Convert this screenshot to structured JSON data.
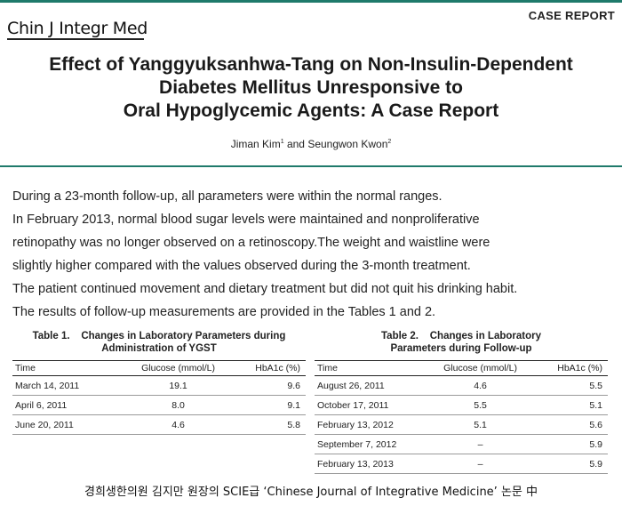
{
  "header": {
    "journal": "Chin J Integr Med",
    "section": "CASE REPORT",
    "title_lines": [
      "Effect of Yanggyuksanhwa-Tang on Non-Insulin-Dependent",
      "Diabetes Mellitus Unresponsive to",
      "Oral Hypoglycemic Agents: A Case Report"
    ],
    "author1": "Jiman Kim",
    "author1_sup": "1",
    "author_join": " and ",
    "author2": "Seungwon Kwon",
    "author2_sup": "2"
  },
  "body": {
    "lines": [
      "During a 23-month follow-up, all parameters were within the normal ranges.",
      "In February 2013, normal blood sugar levels were maintained and nonproliferative",
      "retinopathy was no longer observed on a retinoscopy.The weight and waistline were",
      "slightly higher compared with the values observed during the 3-month treatment.",
      "The patient continued movement and dietary treatment but did not quit his drinking habit.",
      "The results of follow-up measurements are provided in the Tables 1 and 2."
    ]
  },
  "table1": {
    "caption_line1": "Table 1.    Changes in Laboratory Parameters during",
    "caption_line2": "Administration of YGST",
    "headers": [
      "Time",
      "Glucose (mmol/L)",
      "HbA1c (%)"
    ],
    "rows": [
      [
        "March 14, 2011",
        "19.1",
        "9.6"
      ],
      [
        "April 6, 2011",
        "8.0",
        "9.1"
      ],
      [
        "June 20, 2011",
        "4.6",
        "5.8"
      ]
    ]
  },
  "table2": {
    "caption_line1": "Table 2.    Changes in Laboratory",
    "caption_line2": "Parameters during Follow-up",
    "headers": [
      "Time",
      "Glucose (mmol/L)",
      "HbA1c (%)"
    ],
    "rows": [
      [
        "August 26, 2011",
        "4.6",
        "5.5"
      ],
      [
        "October 17, 2011",
        "5.5",
        "5.1"
      ],
      [
        "February 13, 2012",
        "5.1",
        "5.6"
      ],
      [
        "September 7, 2012",
        "–",
        "5.9"
      ],
      [
        "February 13, 2013",
        "–",
        "5.9"
      ]
    ]
  },
  "footer": {
    "caption": "경희생한의원 김지만 원장의 SCIE급 ‘Chinese Journal of Integrative Medicine’ 논문 中"
  },
  "colors": {
    "accent": "#1f7a6b"
  }
}
